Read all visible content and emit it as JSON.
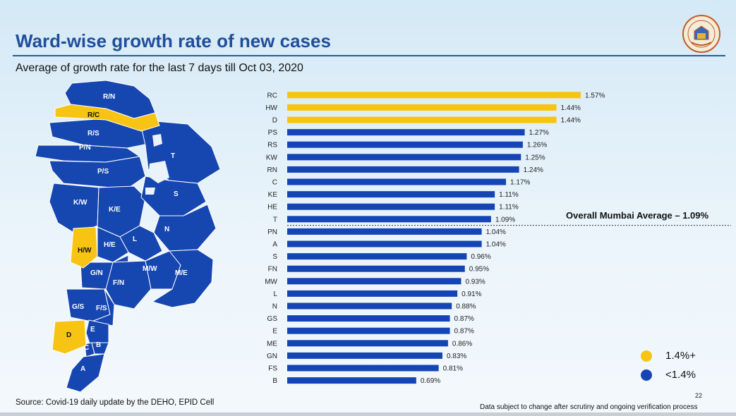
{
  "header": {
    "title": "Ward-wise growth rate of new cases",
    "subtitle": "Average of growth rate for the last 7 days till Oct 03, 2020"
  },
  "logo": {
    "icon": "municipal-seal-icon"
  },
  "map": {
    "labels": [
      "R/N",
      "R/C",
      "R/S",
      "P/N",
      "P/S",
      "K/W",
      "K/E",
      "T",
      "S",
      "N",
      "L",
      "H/W",
      "H/E",
      "G/N",
      "F/N",
      "M/W",
      "M/E",
      "G/S",
      "F/S",
      "D",
      "E",
      "C",
      "B",
      "A"
    ],
    "highlighted": [
      "R/C",
      "H/W",
      "D"
    ]
  },
  "chart_data": {
    "type": "bar",
    "orientation": "horizontal",
    "categories": [
      "RC",
      "HW",
      "D",
      "PS",
      "RS",
      "KW",
      "RN",
      "C",
      "KE",
      "HE",
      "T",
      "PN",
      "A",
      "S",
      "FN",
      "MW",
      "L",
      "N",
      "GS",
      "E",
      "ME",
      "GN",
      "FS",
      "B"
    ],
    "values": [
      1.57,
      1.44,
      1.44,
      1.27,
      1.26,
      1.25,
      1.24,
      1.17,
      1.11,
      1.11,
      1.09,
      1.04,
      1.04,
      0.96,
      0.95,
      0.93,
      0.91,
      0.88,
      0.87,
      0.87,
      0.86,
      0.83,
      0.81,
      0.69
    ],
    "value_labels": [
      "1.57%",
      "1.44%",
      "1.44%",
      "1.27%",
      "1.26%",
      "1.25%",
      "1.24%",
      "1.17%",
      "1.11%",
      "1.11%",
      "1.09%",
      "1.04%",
      "1.04%",
      "0.96%",
      "0.95%",
      "0.93%",
      "0.91%",
      "0.88%",
      "0.87%",
      "0.87%",
      "0.86%",
      "0.83%",
      "0.81%",
      "0.69%"
    ],
    "threshold": 1.4,
    "average": {
      "value": 1.09,
      "label": "Overall Mumbai Average – 1.09%"
    },
    "legend": [
      {
        "label": "1.4%+",
        "color": "#f7c413"
      },
      {
        "label": "<1.4%",
        "color": "#1545b5"
      }
    ],
    "xlim": [
      0,
      1.6
    ]
  },
  "colors": {
    "high": "#f7c413",
    "low": "#1545b5",
    "title": "#1f4e9c"
  },
  "footer": {
    "source": "Source: Covid-19 daily update by the DEHO, EPID Cell",
    "disclaimer": "Data subject to change after scrutiny and ongoing verification process",
    "page": "22"
  }
}
